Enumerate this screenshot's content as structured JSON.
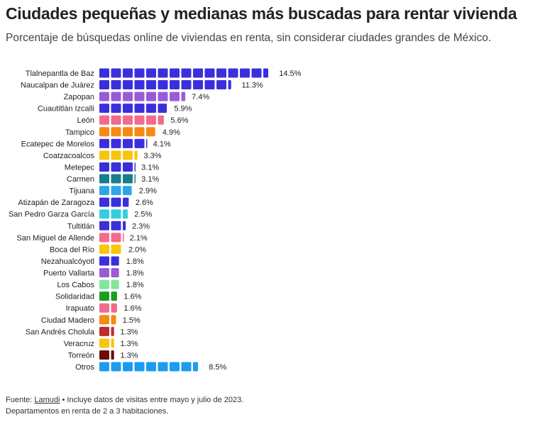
{
  "title": "Ciudades pequeñas y medianas más buscadas para rentar vivienda",
  "subtitle": "Porcentaje de búsquedas online de viviendas en renta, sin considerar ciudades grandes de México.",
  "footer": {
    "source_label": "Fuente:",
    "source_link": "Lamudi",
    "note1": "• Incluye datos de visitas entre mayo y julio de 2023.",
    "note2": "Departamentos en renta de 2 a 3 habitaciones."
  },
  "chart_data": {
    "type": "bar",
    "orientation": "horizontal pictogram (1 square = 1%)",
    "categories": [
      "Tlalnepantla de Baz",
      "Naucalpan de Juárez",
      "Zapopan",
      "Cuautitlán Izcalli",
      "León",
      "Tampico",
      "Ecatepec de Morelos",
      "Coatzacoalcos",
      "Metepec",
      "Carmen",
      "Tijuana",
      "Atizapán de Zaragoza",
      "San Pedro Garza García",
      "Tultitlán",
      "San Miguel de Allende",
      "Boca del Río",
      "Nezahualcóyotl",
      "Puerto Vallarta",
      "Los Cabos",
      "Solidaridad",
      "Irapuato",
      "Ciudad Madero",
      "San Andrés Cholula",
      "Veracruz",
      "Torreón",
      "Otros"
    ],
    "values": [
      14.5,
      11.3,
      7.4,
      5.9,
      5.6,
      4.9,
      4.1,
      3.3,
      3.1,
      3.1,
      2.9,
      2.6,
      2.5,
      2.3,
      2.1,
      2.0,
      1.8,
      1.8,
      1.8,
      1.6,
      1.6,
      1.5,
      1.3,
      1.3,
      1.3,
      8.5
    ],
    "labels": [
      "14.5%",
      "11.3%",
      "7.4%",
      "5.9%",
      "5.6%",
      "4.9%",
      "4.1%",
      "3.3%",
      "3.1%",
      "3.1%",
      "2.9%",
      "2.6%",
      "2.5%",
      "2.3%",
      "2.1%",
      "2.0%",
      "1.8%",
      "1.8%",
      "1.8%",
      "1.6%",
      "1.6%",
      "1.5%",
      "1.3%",
      "1.3%",
      "1.3%",
      "8.5%"
    ],
    "colors": [
      "#3b2fdc",
      "#3b2fdc",
      "#9b5bd8",
      "#3b2fdc",
      "#f26b8c",
      "#f68a12",
      "#3b2fdc",
      "#f7c50c",
      "#3b2fdc",
      "#177e8c",
      "#2fa6e6",
      "#3b2fdc",
      "#33cfe0",
      "#3b2fdc",
      "#f26b8c",
      "#f7c50c",
      "#3b2fdc",
      "#9b5bd8",
      "#86e39a",
      "#1e9c22",
      "#f26b8c",
      "#f68a12",
      "#c12a2e",
      "#f7c50c",
      "#6e0b0b",
      "#1c9cf0"
    ],
    "grid": false
  }
}
